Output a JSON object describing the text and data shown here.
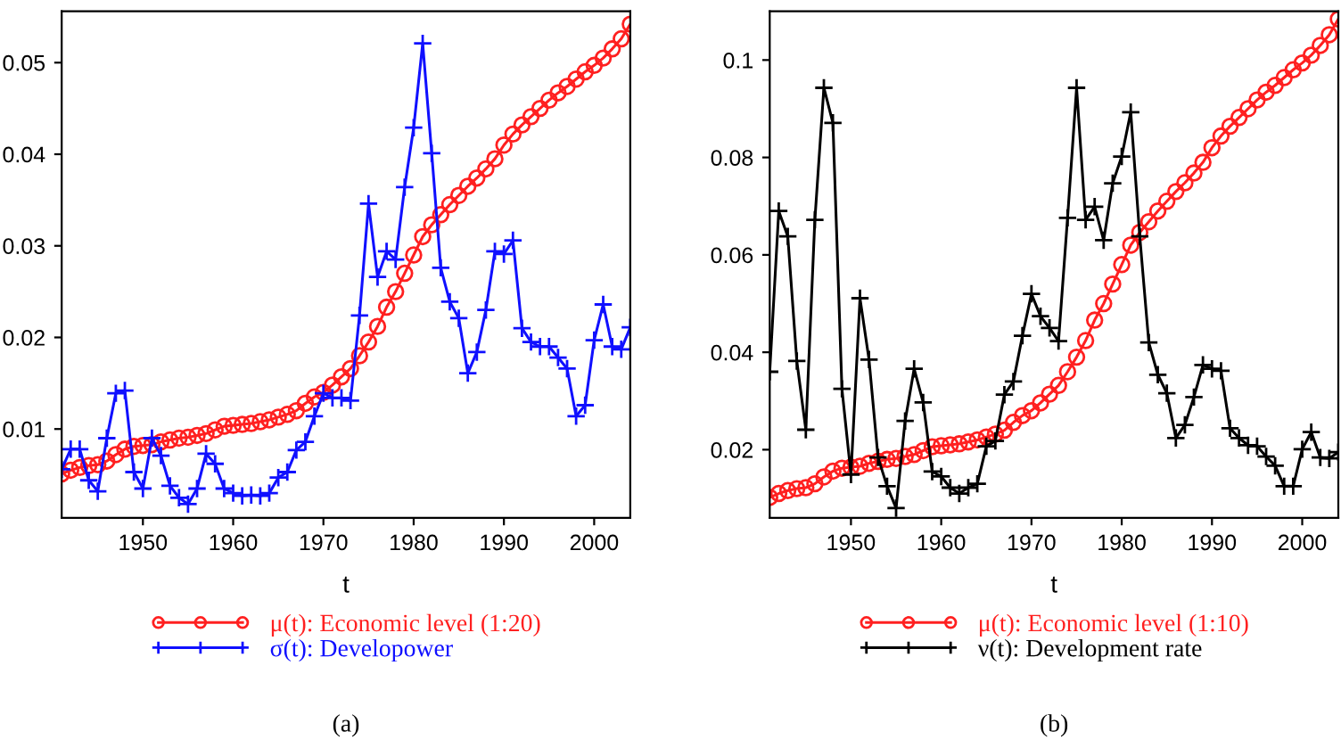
{
  "chart_data": [
    {
      "type": "line",
      "xlabel": "t",
      "annotations": [
        "(a)"
      ],
      "legend": "bottom",
      "grid": false,
      "x": [
        1941,
        1942,
        1943,
        1944,
        1945,
        1946,
        1947,
        1948,
        1949,
        1950,
        1951,
        1952,
        1953,
        1954,
        1955,
        1956,
        1957,
        1958,
        1959,
        1960,
        1961,
        1962,
        1963,
        1964,
        1965,
        1966,
        1967,
        1968,
        1969,
        1970,
        1971,
        1972,
        1973,
        1974,
        1975,
        1976,
        1977,
        1978,
        1979,
        1980,
        1981,
        1982,
        1983,
        1984,
        1985,
        1986,
        1987,
        1988,
        1989,
        1990,
        1991,
        1992,
        1993,
        1994,
        1995,
        1996,
        1997,
        1998,
        1999,
        2000,
        2001,
        2002,
        2003,
        2004
      ],
      "xlim": [
        1941,
        2004
      ],
      "xticks": [
        1950,
        1960,
        1970,
        1980,
        1990,
        2000
      ],
      "ylim": [
        0.0003,
        0.0556
      ],
      "yticks": [
        0.01,
        0.02,
        0.03,
        0.04,
        0.05
      ],
      "series": [
        {
          "name": "μ(t): Economic level (1:20)",
          "color": "#ff2020",
          "marker": "circle",
          "values": [
            0.0051,
            0.0055,
            0.0058,
            0.006,
            0.0061,
            0.0065,
            0.0072,
            0.0078,
            0.0081,
            0.0082,
            0.0083,
            0.0086,
            0.0088,
            0.009,
            0.0091,
            0.0093,
            0.0095,
            0.0099,
            0.0103,
            0.0104,
            0.0105,
            0.0106,
            0.0108,
            0.011,
            0.0113,
            0.0116,
            0.012,
            0.0128,
            0.0135,
            0.014,
            0.0148,
            0.0157,
            0.0166,
            0.018,
            0.0195,
            0.0212,
            0.0233,
            0.025,
            0.027,
            0.029,
            0.031,
            0.0323,
            0.0334,
            0.0345,
            0.0355,
            0.0365,
            0.0374,
            0.0384,
            0.0395,
            0.041,
            0.0422,
            0.0432,
            0.0441,
            0.045,
            0.0459,
            0.0467,
            0.0474,
            0.0482,
            0.049,
            0.0497,
            0.0505,
            0.0515,
            0.0526,
            0.0542
          ]
        },
        {
          "name": "σ(t): Developower",
          "color": "#1010ff",
          "marker": "cross",
          "values": [
            0.0056,
            0.0078,
            0.0078,
            0.0044,
            0.0032,
            0.009,
            0.0139,
            0.0142,
            0.0053,
            0.0035,
            0.009,
            0.0071,
            0.0038,
            0.0025,
            0.0018,
            0.0035,
            0.0073,
            0.0062,
            0.0035,
            0.003,
            0.0027,
            0.0028,
            0.0027,
            0.003,
            0.0047,
            0.0053,
            0.0077,
            0.0086,
            0.0114,
            0.0139,
            0.0134,
            0.0134,
            0.0131,
            0.0224,
            0.0346,
            0.0266,
            0.0294,
            0.0285,
            0.0364,
            0.0429,
            0.0521,
            0.0401,
            0.0276,
            0.0239,
            0.0221,
            0.0161,
            0.0184,
            0.023,
            0.0294,
            0.0291,
            0.0306,
            0.021,
            0.0195,
            0.019,
            0.019,
            0.0178,
            0.0166,
            0.0114,
            0.0126,
            0.0197,
            0.0236,
            0.019,
            0.0187,
            0.0211
          ]
        }
      ]
    },
    {
      "type": "line",
      "xlabel": "t",
      "annotations": [
        "(b)"
      ],
      "legend": "bottom",
      "grid": false,
      "x": [
        1941,
        1942,
        1943,
        1944,
        1945,
        1946,
        1947,
        1948,
        1949,
        1950,
        1951,
        1952,
        1953,
        1954,
        1955,
        1956,
        1957,
        1958,
        1959,
        1960,
        1961,
        1962,
        1963,
        1964,
        1965,
        1966,
        1967,
        1968,
        1969,
        1970,
        1971,
        1972,
        1973,
        1974,
        1975,
        1976,
        1977,
        1978,
        1979,
        1980,
        1981,
        1982,
        1983,
        1984,
        1985,
        1986,
        1987,
        1988,
        1989,
        1990,
        1991,
        1992,
        1993,
        1994,
        1995,
        1996,
        1997,
        1998,
        1999,
        2000,
        2001,
        2002,
        2003,
        2004
      ],
      "xlim": [
        1941,
        2004
      ],
      "xticks": [
        1950,
        1960,
        1970,
        1980,
        1990,
        2000
      ],
      "ylim": [
        0.006,
        0.11
      ],
      "yticks": [
        0.02,
        0.04,
        0.06,
        0.08,
        0.1
      ],
      "series": [
        {
          "name": "μ(t): Economic level (1:10)",
          "color": "#ff2020",
          "marker": "circle",
          "values": [
            0.0102,
            0.011,
            0.0116,
            0.012,
            0.0122,
            0.013,
            0.0144,
            0.0156,
            0.0162,
            0.0164,
            0.0166,
            0.0172,
            0.0176,
            0.018,
            0.0182,
            0.0186,
            0.019,
            0.0198,
            0.0206,
            0.0208,
            0.021,
            0.0212,
            0.0216,
            0.022,
            0.0226,
            0.0232,
            0.024,
            0.0256,
            0.027,
            0.028,
            0.0296,
            0.0314,
            0.0332,
            0.036,
            0.039,
            0.0424,
            0.0466,
            0.05,
            0.054,
            0.058,
            0.062,
            0.0646,
            0.0668,
            0.069,
            0.071,
            0.073,
            0.0748,
            0.0768,
            0.079,
            0.082,
            0.0844,
            0.0864,
            0.0882,
            0.09,
            0.0918,
            0.0934,
            0.0948,
            0.0964,
            0.098,
            0.0994,
            0.101,
            0.103,
            0.1052,
            0.1084
          ]
        },
        {
          "name": "ν(t): Development rate",
          "color": "#000000",
          "marker": "cross",
          "values": [
            0.036,
            0.069,
            0.0638,
            0.0382,
            0.0241,
            0.0672,
            0.0943,
            0.0871,
            0.0325,
            0.0149,
            0.0511,
            0.0385,
            0.0184,
            0.0125,
            0.008,
            0.0259,
            0.0366,
            0.0297,
            0.0155,
            0.0145,
            0.0122,
            0.011,
            0.0122,
            0.013,
            0.0207,
            0.0218,
            0.0313,
            0.034,
            0.0434,
            0.052,
            0.0474,
            0.045,
            0.0423,
            0.0676,
            0.0943,
            0.0672,
            0.0699,
            0.063,
            0.0747,
            0.0802,
            0.0893,
            0.0638,
            0.042,
            0.0354,
            0.0316,
            0.0224,
            0.0251,
            0.0308,
            0.0374,
            0.0366,
            0.0362,
            0.0244,
            0.0224,
            0.0209,
            0.0207,
            0.0186,
            0.0167,
            0.0125,
            0.0125,
            0.0201,
            0.0236,
            0.0184,
            0.0182,
            0.0195
          ]
        }
      ]
    }
  ]
}
